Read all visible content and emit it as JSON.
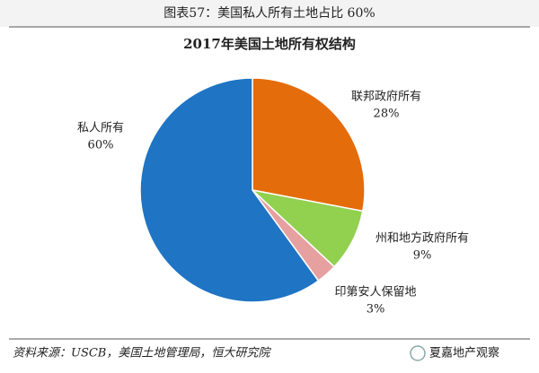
{
  "header": "图表57：美国私人所有土地占比 60%",
  "chart_data": {
    "type": "pie",
    "title": "2017年美国土地所有权结构",
    "categories": [
      "联邦政府所有",
      "州和地方政府所有",
      "印第安人保留地",
      "私人所有"
    ],
    "values": [
      28,
      9,
      3,
      60
    ],
    "value_labels": [
      "28%",
      "9%",
      "3%",
      "60%"
    ],
    "colors": [
      "#e46c0a",
      "#92d050",
      "#e6a0a0",
      "#1f74c4"
    ]
  },
  "source": "资料来源：USCB，美国土地管理局，恒大研究院",
  "watermark": "夏嘉地产观察"
}
